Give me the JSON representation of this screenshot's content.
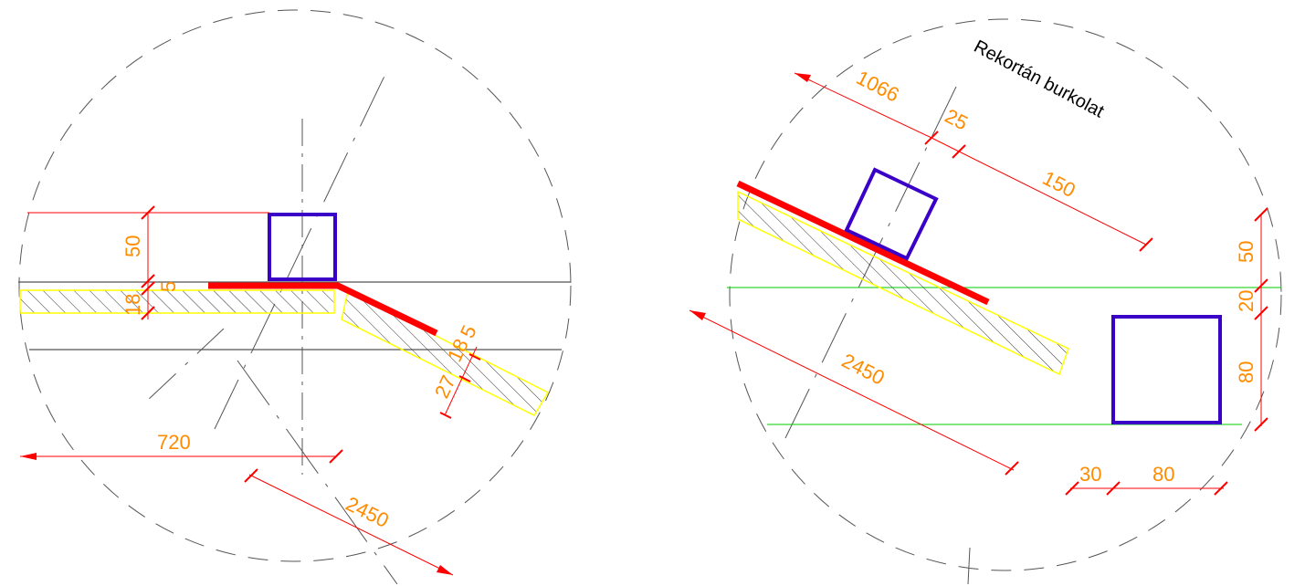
{
  "colors": {
    "dimension_text": "#ff8c00",
    "dimension_line": "#ff0000",
    "board": "#ff0000",
    "profile_fill": "#3b00c8",
    "profile_inner": "#ffffff",
    "insulation_outline": "#ffff00",
    "reference_line": "#00cc00",
    "detail_circle": "#555555"
  },
  "left_detail": {
    "dimensions": {
      "d50": "50",
      "d5_top": "5",
      "d18_left": "18",
      "d720": "720",
      "d2450": "2450",
      "d5_right": "5",
      "d18_right": "18",
      "d27": "27"
    }
  },
  "right_detail": {
    "note": "Rekortán burkolat",
    "dimensions": {
      "d1066": "1066",
      "d25": "25",
      "d150": "150",
      "d2450": "2450",
      "d50": "50",
      "d20": "20",
      "d80_vertical": "80",
      "d30": "30",
      "d80_horizontal": "80"
    }
  }
}
